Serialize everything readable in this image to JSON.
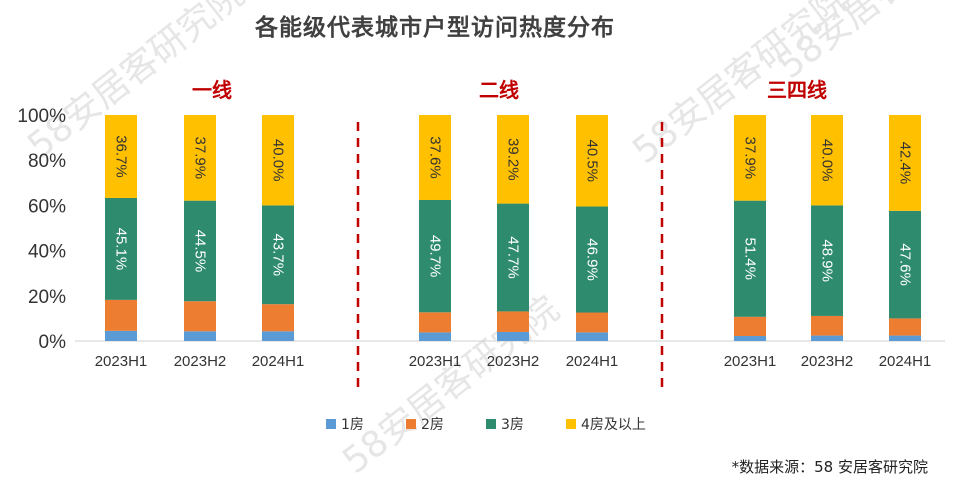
{
  "chart_data": {
    "type": "bar",
    "stacked": true,
    "percent": true,
    "title": "各能级代表城市户型访问热度分布",
    "source": "*数据来源：58 安居客研究院",
    "watermark": "58安居客研究院",
    "ylim": [
      0,
      100
    ],
    "yticks": [
      "0%",
      "20%",
      "40%",
      "60%",
      "80%",
      "100%"
    ],
    "legend_position": "bottom",
    "grid": false,
    "series": [
      {
        "name": "1房",
        "color": "#5B9BD5"
      },
      {
        "name": "2房",
        "color": "#ED7D31"
      },
      {
        "name": "3房",
        "color": "#2E8B6E"
      },
      {
        "name": "4房及以上",
        "color": "#FFC000"
      }
    ],
    "groups": [
      {
        "label": "一线",
        "categories": [
          "2023H1",
          "2023H2",
          "2024H1"
        ],
        "values": [
          [
            4.5,
            13.7,
            45.1,
            36.7
          ],
          [
            4.3,
            13.3,
            44.5,
            37.9
          ],
          [
            4.3,
            12.0,
            43.7,
            40.0
          ]
        ],
        "labels": [
          [
            "",
            "",
            "45.1%",
            "36.7%"
          ],
          [
            "",
            "",
            "44.5%",
            "37.9%"
          ],
          [
            "",
            "",
            "43.7%",
            "40.0%"
          ]
        ]
      },
      {
        "label": "二线",
        "categories": [
          "2023H1",
          "2023H2",
          "2024H1"
        ],
        "values": [
          [
            3.8,
            8.9,
            49.7,
            37.6
          ],
          [
            4.0,
            9.1,
            47.7,
            39.2
          ],
          [
            3.8,
            8.8,
            46.9,
            40.5
          ]
        ],
        "labels": [
          [
            "",
            "",
            "49.7%",
            "37.6%"
          ],
          [
            "",
            "",
            "47.7%",
            "39.2%"
          ],
          [
            "",
            "",
            "46.9%",
            "40.5%"
          ]
        ]
      },
      {
        "label": "三四线",
        "categories": [
          "2023H1",
          "2023H2",
          "2024H1"
        ],
        "values": [
          [
            2.2,
            8.5,
            51.4,
            37.9
          ],
          [
            2.4,
            8.7,
            48.9,
            40.0
          ],
          [
            2.4,
            7.6,
            47.6,
            42.4
          ]
        ],
        "labels": [
          [
            "",
            "",
            "51.4%",
            "37.9%"
          ],
          [
            "",
            "",
            "48.9%",
            "40.0%"
          ],
          [
            "",
            "",
            "47.6%",
            "42.4%"
          ]
        ]
      }
    ]
  }
}
